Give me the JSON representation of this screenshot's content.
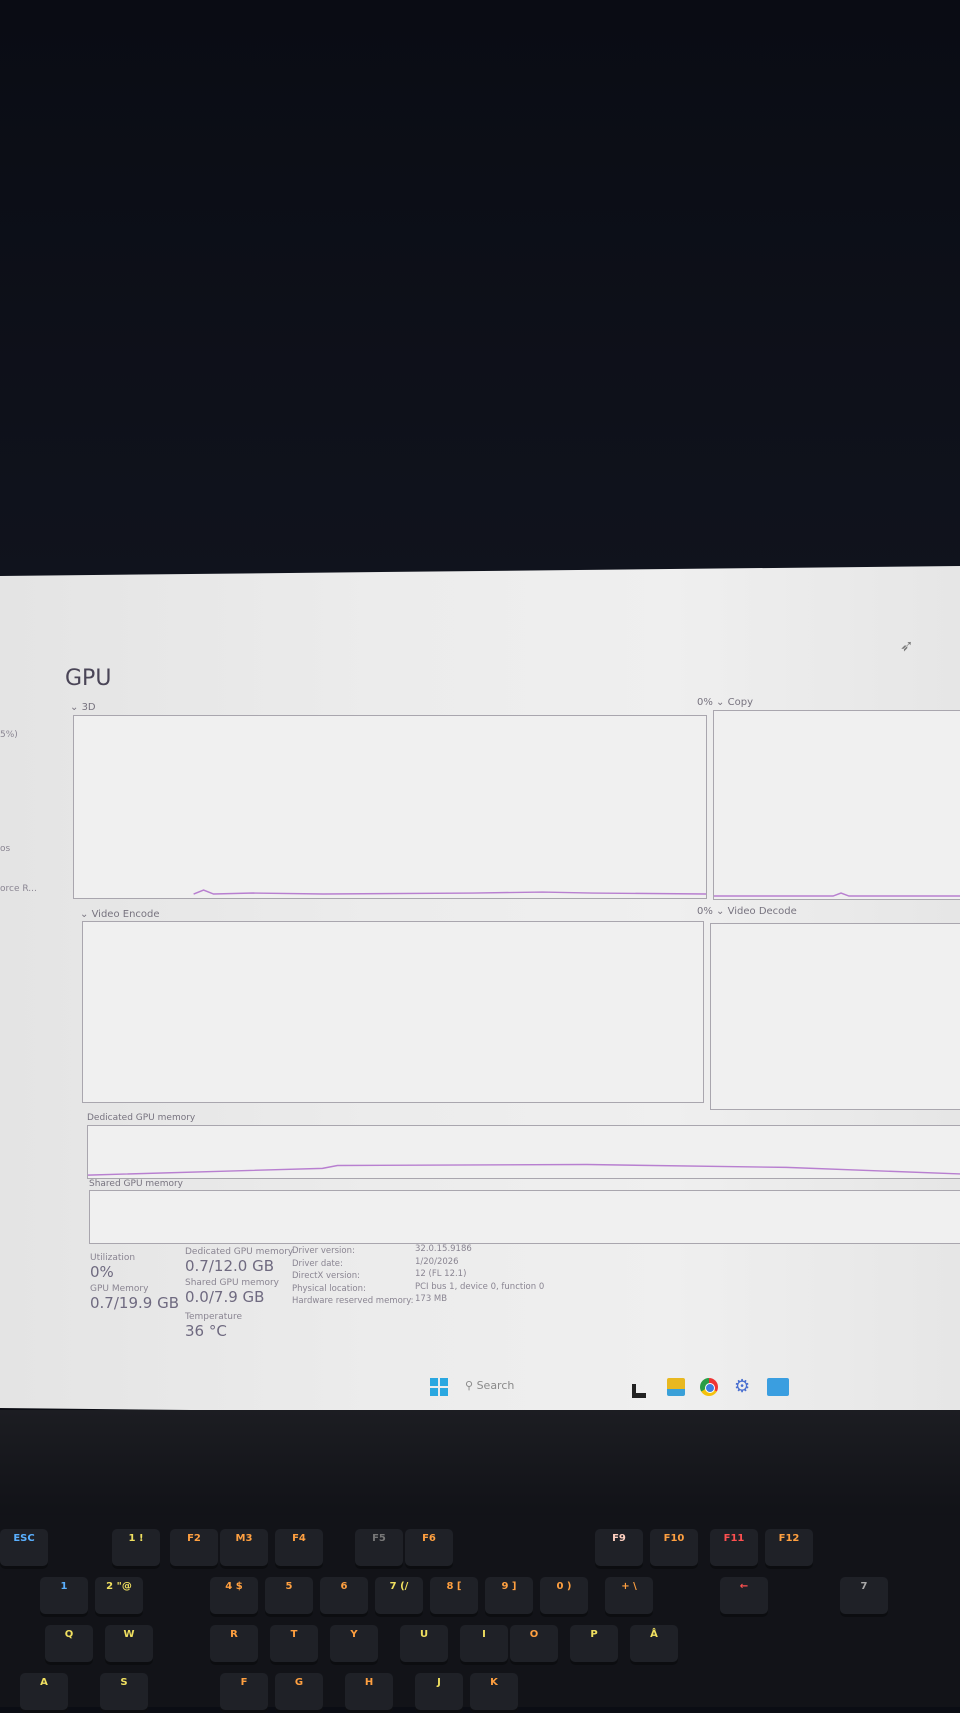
{
  "app": {
    "title": "GPU"
  },
  "sidebar_fragments": [
    "5%)",
    "os",
    "orce R..."
  ],
  "graphs": {
    "three_d": {
      "label": "3D"
    },
    "copy": {
      "label": "Copy",
      "percent": "0%"
    },
    "video_encode": {
      "label": "Video Encode"
    },
    "video_decode": {
      "label": "Video Decode",
      "percent": "0%"
    },
    "dedicated_memory": {
      "label": "Dedicated GPU memory"
    },
    "shared_memory": {
      "label": "Shared GPU memory"
    }
  },
  "stats": {
    "utilization": {
      "label": "Utilization",
      "value": "0%"
    },
    "gpu_memory": {
      "label": "GPU Memory",
      "value": "0.7/19.9 GB"
    },
    "dedicated": {
      "label": "Dedicated GPU memory",
      "value": "0.7/12.0 GB"
    },
    "shared": {
      "label": "Shared GPU memory",
      "value": "0.0/7.9 GB"
    },
    "temperature": {
      "label": "Temperature",
      "value": "36 °C"
    }
  },
  "info": [
    {
      "label": "Driver version:",
      "value": "32.0.15.9186"
    },
    {
      "label": "Driver date:",
      "value": "1/20/2026"
    },
    {
      "label": "DirectX version:",
      "value": "12 (FL 12.1)"
    },
    {
      "label": "Physical location:",
      "value": "PCI bus 1, device 0, function 0"
    },
    {
      "label": "Hardware reserved memory:",
      "value": "173 MB"
    }
  ],
  "taskbar": {
    "search_placeholder": "Search",
    "icons": [
      "windows-start-icon",
      "terminal-icon",
      "file-explorer-icon",
      "chrome-icon",
      "settings-icon",
      "photos-icon"
    ]
  },
  "colors": {
    "graph_line": "#b87fd0",
    "accent": "#2aa7e0"
  },
  "keyboard": {
    "keys": [
      "ESC",
      "1 !",
      "F2",
      "M3",
      "F4",
      "F5",
      "F6",
      "F9",
      "F10",
      "F11",
      "F12",
      "1",
      "2 \"@",
      "4 $",
      "5",
      "6",
      "7 (/",
      "8 [",
      "9 ]",
      "0 )",
      "+ \\",
      "←",
      "7",
      "Q",
      "W",
      "R",
      "T",
      "Y",
      "U",
      "I",
      "O",
      "P",
      "Å",
      "A",
      "S",
      "F",
      "G",
      "H",
      "J",
      "K"
    ]
  }
}
